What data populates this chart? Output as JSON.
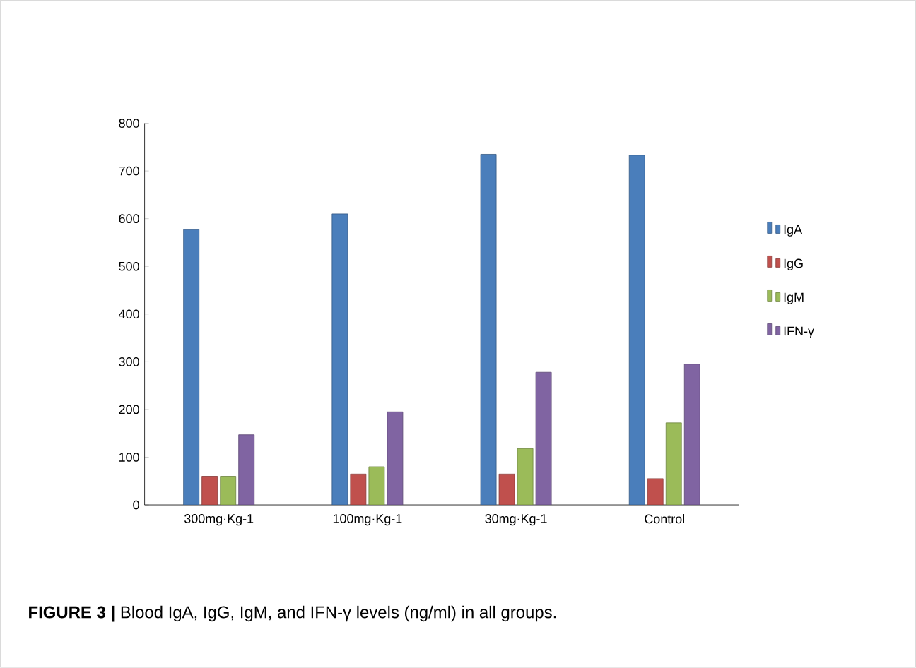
{
  "chart_data": {
    "type": "bar",
    "categories": [
      "300mg·Kg-1",
      "100mg·Kg-1",
      "30mg·Kg-1",
      "Control"
    ],
    "series": [
      {
        "name": "IgA",
        "color": "#4a7ebb",
        "values": [
          577,
          610,
          735,
          733
        ]
      },
      {
        "name": "IgG",
        "color": "#c0504d",
        "values": [
          60,
          65,
          65,
          55
        ]
      },
      {
        "name": "IgM",
        "color": "#9bbb59",
        "values": [
          60,
          80,
          118,
          172
        ]
      },
      {
        "name": "IFN-γ",
        "color": "#8064a2",
        "values": [
          147,
          195,
          278,
          295
        ]
      }
    ],
    "ylim": [
      0,
      800
    ],
    "yticks": [
      0,
      100,
      200,
      300,
      400,
      500,
      600,
      700,
      800
    ],
    "legend": "right",
    "grid": false,
    "annotations": [
      "**FIGURE 3 |** Blood IgA, IgG, IgM, and IFN-γ levels (ng/ml) in all groups."
    ]
  }
}
